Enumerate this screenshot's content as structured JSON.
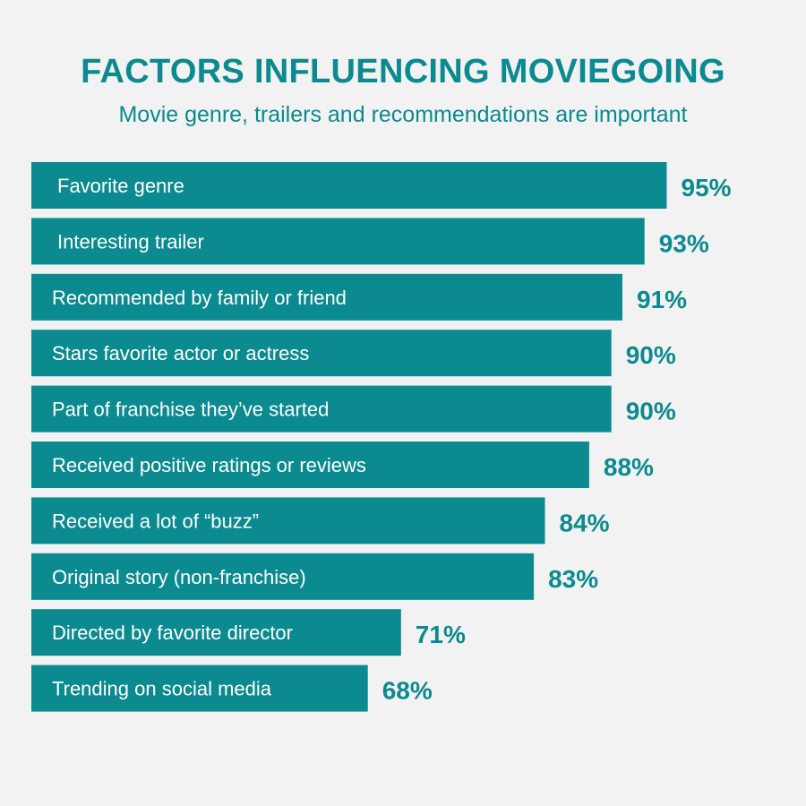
{
  "title": "FACTORS INFLUENCING MOVIEGOING",
  "subtitle": "Movie genre, trailers and recommendations are important",
  "colors": {
    "background": "#f2f2f2",
    "bar": "#0b8a8f",
    "value_text": "#0b8a8f",
    "label_text": "#ffffff"
  },
  "chart_data": {
    "type": "bar",
    "orientation": "horizontal",
    "title": "FACTORS INFLUENCING MOVIEGOING",
    "subtitle": "Movie genre, trailers and recommendations are important",
    "categories": [
      "Favorite genre",
      "Interesting trailer",
      "Recommended by family or friend",
      "Stars favorite actor or actress",
      "Part of franchise they’ve started",
      "Received positive ratings or reviews",
      "Received a lot of “buzz”",
      "Original story (non-franchise)",
      "Directed by favorite director",
      "Trending on social media"
    ],
    "values": [
      95,
      93,
      91,
      90,
      90,
      88,
      84,
      83,
      71,
      68
    ],
    "value_labels": [
      "95%",
      "93%",
      "91%",
      "90%",
      "90%",
      "88%",
      "84%",
      "83%",
      "71%",
      "68%"
    ],
    "unit": "%",
    "grid": false,
    "legend": "none"
  }
}
